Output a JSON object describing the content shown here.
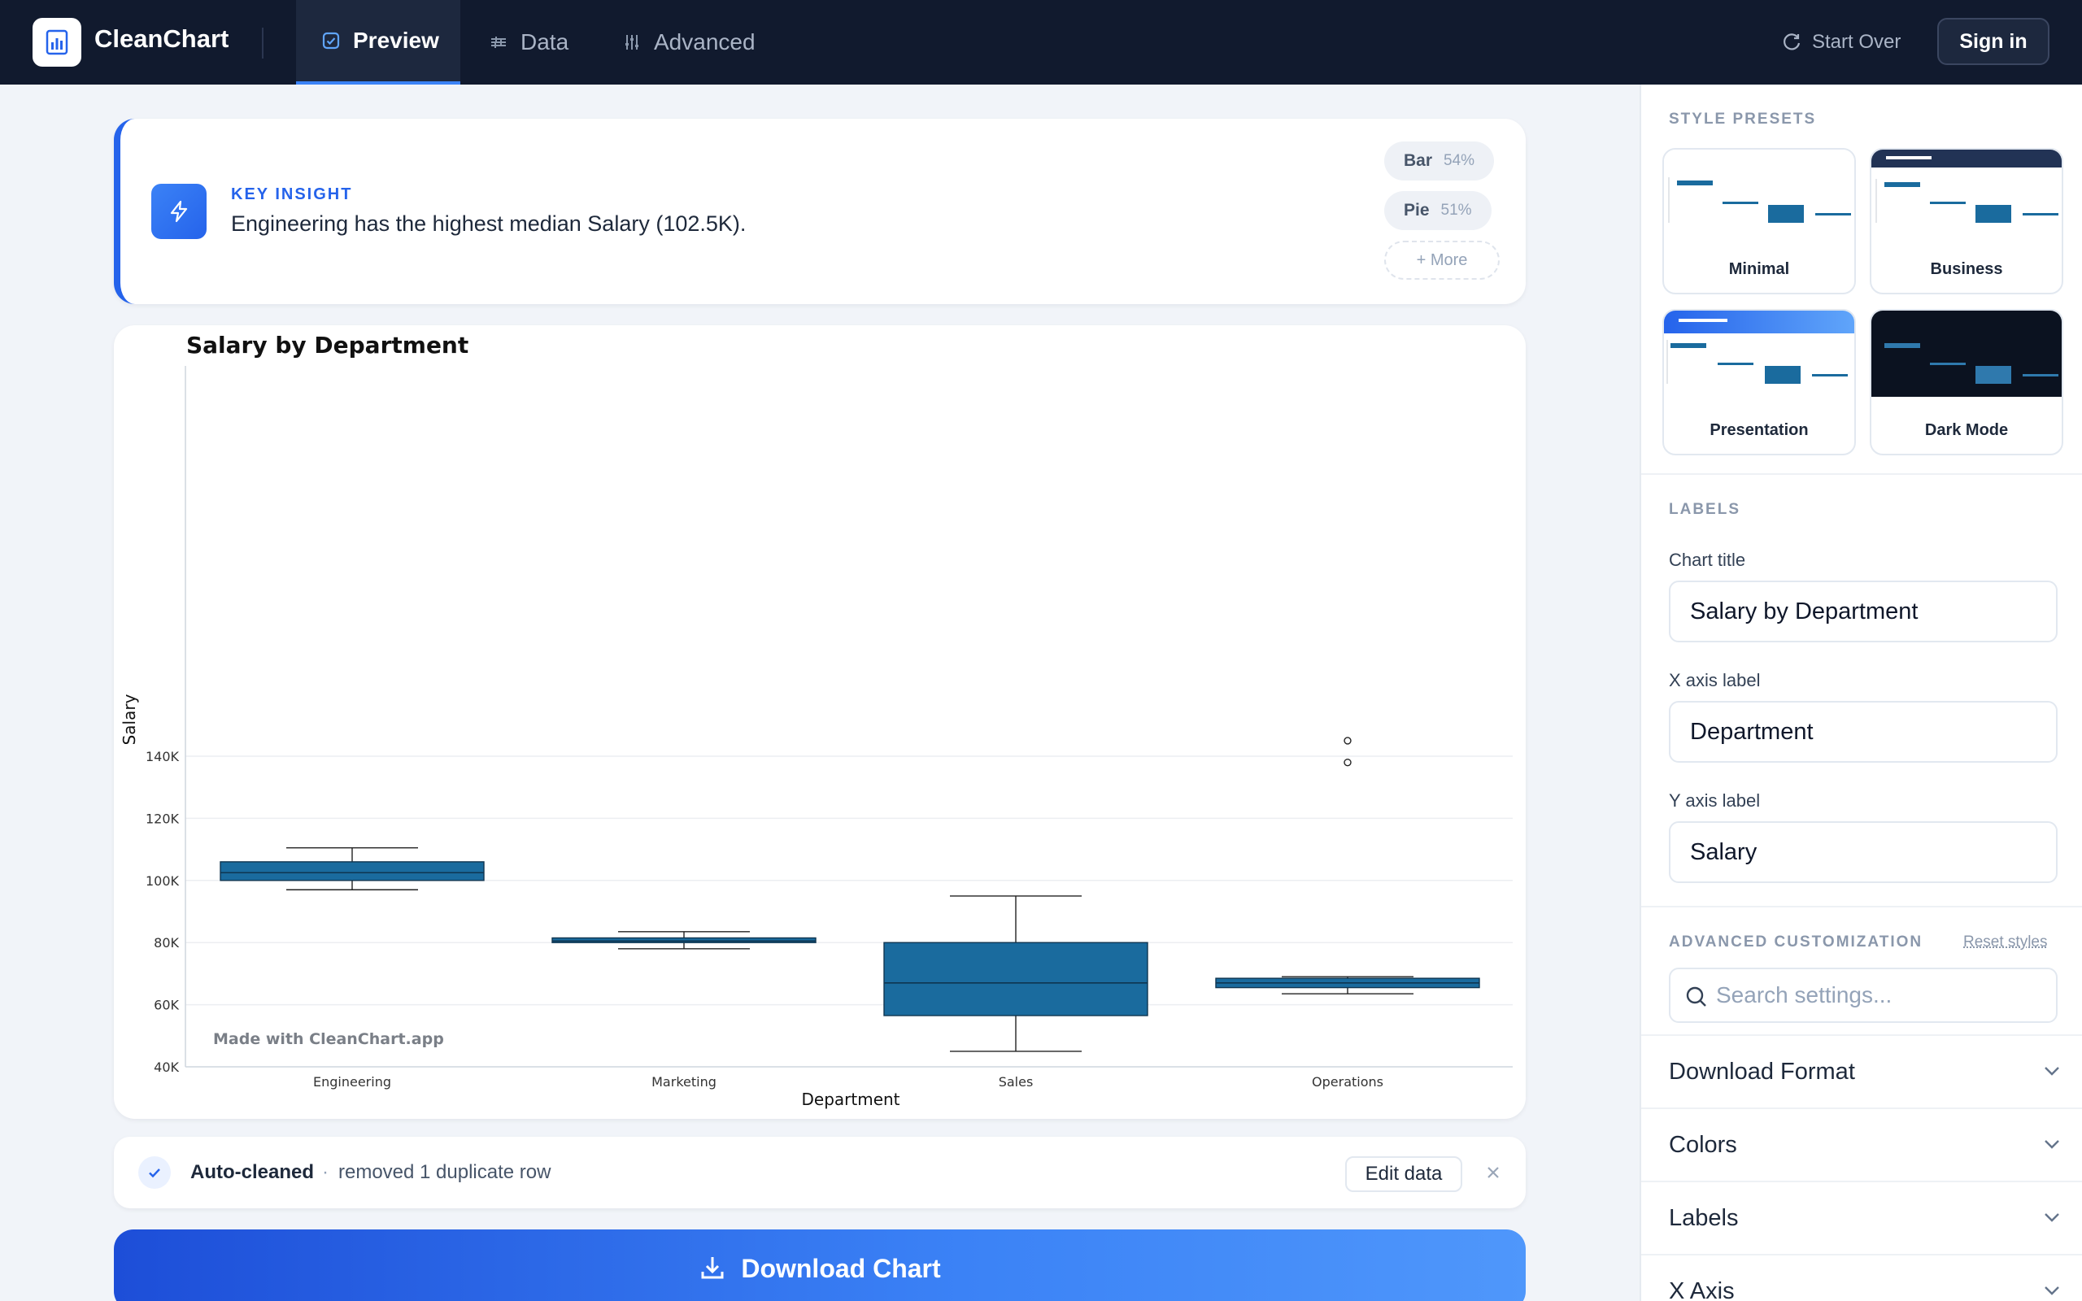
{
  "app": {
    "name": "CleanChart",
    "tabs": [
      {
        "label": "Preview",
        "icon": "checkbox-icon",
        "active": true
      },
      {
        "label": "Data",
        "icon": "sliders-icon",
        "active": false
      },
      {
        "label": "Advanced",
        "icon": "tune-icon",
        "active": false
      }
    ],
    "start_over": "Start Over",
    "sign_in": "Sign in"
  },
  "insight": {
    "kicker": "KEY INSIGHT",
    "text": "Engineering has the highest median Salary (102.5K).",
    "suggestions": [
      {
        "name": "Bar",
        "pct": "54%"
      },
      {
        "name": "Pie",
        "pct": "51%"
      }
    ],
    "more": "+ More"
  },
  "chart_data": {
    "type": "box",
    "title": "Salary by Department",
    "xlabel": "Department",
    "ylabel": "Salary",
    "categories": [
      "Engineering",
      "Marketing",
      "Sales",
      "Operations"
    ],
    "boxes": [
      {
        "category": "Engineering",
        "whisker_low": 97000,
        "q1": 100000,
        "median": 102500,
        "q3": 106000,
        "whisker_high": 110500,
        "outliers": []
      },
      {
        "category": "Marketing",
        "whisker_low": 78000,
        "q1": 80000,
        "median": 80500,
        "q3": 81500,
        "whisker_high": 83500,
        "outliers": []
      },
      {
        "category": "Sales",
        "whisker_low": 45000,
        "q1": 56500,
        "median": 67000,
        "q3": 80000,
        "whisker_high": 95000,
        "outliers": []
      },
      {
        "category": "Operations",
        "whisker_low": 63500,
        "q1": 65500,
        "median": 67000,
        "q3": 68500,
        "whisker_high": 69000,
        "outliers": [
          138000,
          145000
        ]
      }
    ],
    "ylim": [
      40000,
      150000
    ],
    "yticks": [
      40000,
      60000,
      80000,
      100000,
      120000,
      140000
    ],
    "ytick_labels": [
      "40K",
      "60K",
      "80K",
      "100K",
      "120K",
      "140K"
    ],
    "grid": true,
    "box_color": "#1a6b9e",
    "watermark": "Made with CleanChart.app"
  },
  "cleaned": {
    "title": "Auto-cleaned",
    "separator": "·",
    "text": "removed 1 duplicate row",
    "edit": "Edit data"
  },
  "download": {
    "label": "Download Chart"
  },
  "sidebar": {
    "presets_label": "STYLE PRESETS",
    "presets": [
      "Minimal",
      "Business",
      "Presentation",
      "Dark Mode"
    ],
    "labels_label": "LABELS",
    "fields": {
      "chart_title_label": "Chart title",
      "chart_title_value": "Salary by Department",
      "x_label_label": "X axis label",
      "x_label_value": "Department",
      "y_label_label": "Y axis label",
      "y_label_value": "Salary"
    },
    "advanced_label": "ADVANCED CUSTOMIZATION",
    "reset": "Reset styles",
    "search_placeholder": "Search settings...",
    "accordions": [
      "Download Format",
      "Colors",
      "Labels",
      "X Axis"
    ]
  },
  "colors": {
    "accent": "#2563eb",
    "topbar": "#111a2e",
    "box": "#1a6b9e"
  }
}
